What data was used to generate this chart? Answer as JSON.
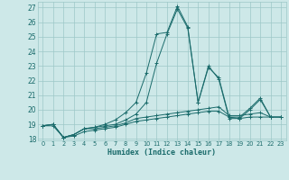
{
  "xlabel": "Humidex (Indice chaleur)",
  "xlim": [
    -0.5,
    23.5
  ],
  "ylim": [
    17.9,
    27.4
  ],
  "yticks": [
    18,
    19,
    20,
    21,
    22,
    23,
    24,
    25,
    26,
    27
  ],
  "xticks": [
    0,
    1,
    2,
    3,
    4,
    5,
    6,
    7,
    8,
    9,
    10,
    11,
    12,
    13,
    14,
    15,
    16,
    17,
    18,
    19,
    20,
    21,
    22,
    23
  ],
  "bg_color": "#cde8e8",
  "grid_color": "#9dc8c8",
  "line_color": "#1a6b6b",
  "lines": [
    {
      "x": [
        0,
        1,
        2,
        3,
        4,
        5,
        6,
        7,
        8,
        9,
        10,
        11,
        12,
        13,
        14,
        15,
        16,
        17,
        18,
        19,
        20,
        21,
        22
      ],
      "y": [
        18.9,
        19.0,
        18.1,
        18.3,
        18.7,
        18.8,
        19.0,
        19.3,
        19.8,
        20.5,
        22.5,
        25.2,
        25.3,
        27.1,
        25.7,
        20.5,
        22.9,
        22.2,
        19.5,
        19.5,
        20.1,
        20.8,
        19.5
      ]
    },
    {
      "x": [
        0,
        1,
        2,
        3,
        4,
        5,
        6,
        7,
        8,
        9,
        10,
        11,
        12,
        13,
        14,
        15,
        16,
        17,
        18,
        19,
        20,
        21,
        22,
        23
      ],
      "y": [
        18.9,
        19.0,
        18.1,
        18.3,
        18.7,
        18.8,
        18.9,
        19.0,
        19.3,
        19.7,
        20.5,
        23.2,
        25.2,
        26.9,
        25.6,
        20.5,
        23.0,
        22.1,
        19.4,
        19.4,
        20.0,
        20.7,
        19.5,
        19.5
      ]
    },
    {
      "x": [
        0,
        1,
        2,
        3,
        4,
        5,
        6,
        7,
        8,
        9,
        10,
        11,
        12,
        13,
        14,
        15,
        16,
        17,
        18,
        19,
        20,
        21,
        22,
        23
      ],
      "y": [
        18.9,
        19.0,
        18.1,
        18.3,
        18.7,
        18.7,
        18.8,
        18.9,
        19.1,
        19.4,
        19.5,
        19.6,
        19.7,
        19.8,
        19.9,
        20.0,
        20.1,
        20.2,
        19.6,
        19.6,
        19.7,
        19.8,
        19.5,
        19.5
      ]
    },
    {
      "x": [
        0,
        1,
        2,
        3,
        4,
        5,
        6,
        7,
        8,
        9,
        10,
        11,
        12,
        13,
        14,
        15,
        16,
        17,
        18,
        19,
        20,
        21,
        22,
        23
      ],
      "y": [
        18.9,
        18.9,
        18.1,
        18.2,
        18.5,
        18.6,
        18.7,
        18.8,
        19.0,
        19.2,
        19.3,
        19.4,
        19.5,
        19.6,
        19.7,
        19.8,
        19.9,
        19.9,
        19.5,
        19.4,
        19.5,
        19.5,
        19.5,
        19.5
      ]
    }
  ]
}
